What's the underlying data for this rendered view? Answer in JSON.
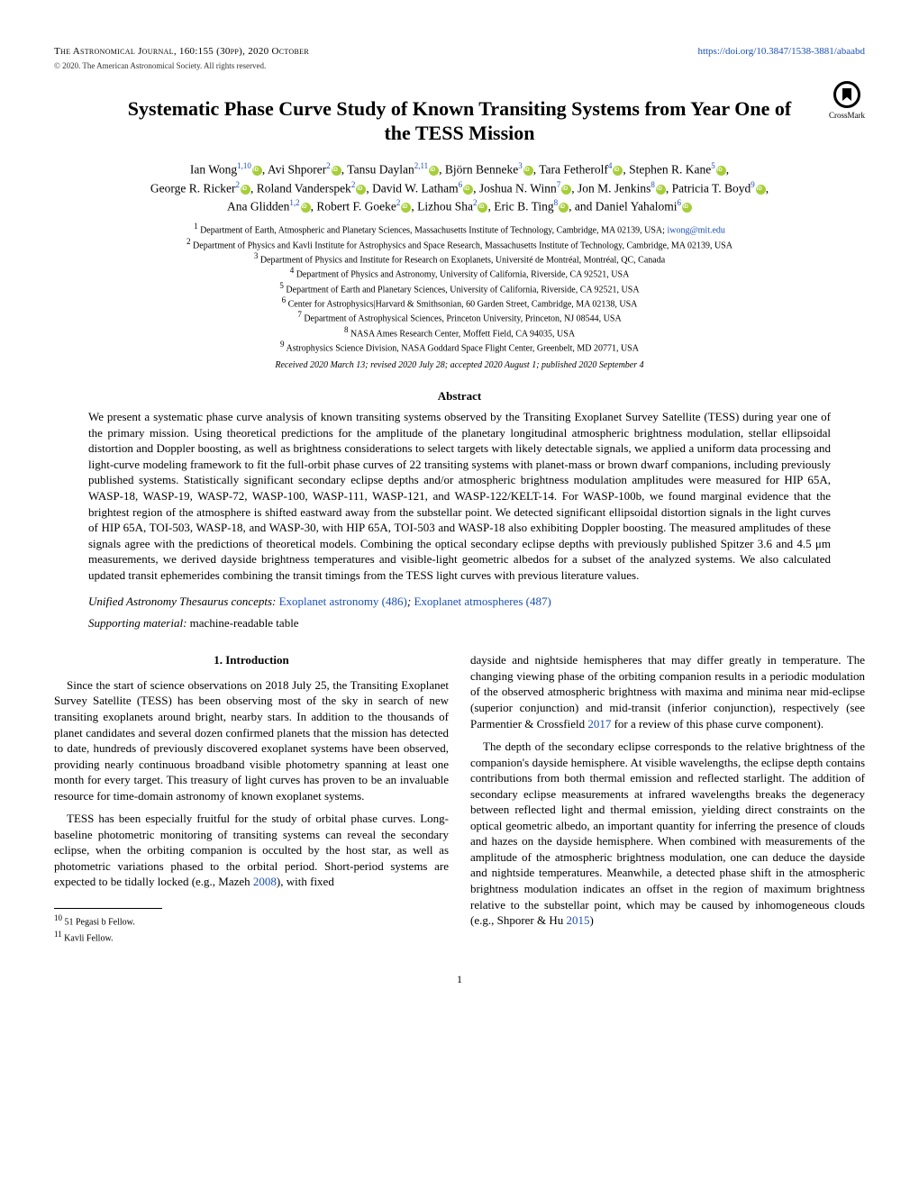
{
  "header": {
    "journal": "The Astronomical Journal, 160:155 (30pp), 2020 October",
    "doi_url": "https://doi.org/10.3847/1538-3881/abaabd",
    "copyright": "© 2020. The American Astronomical Society. All rights reserved."
  },
  "crossmark_label": "CrossMark",
  "title": "Systematic Phase Curve Study of Known Transiting Systems from Year One of the TESS Mission",
  "authors_line1": "Ian Wong",
  "affiliations": [
    "Department of Earth, Atmospheric and Planetary Sciences, Massachusetts Institute of Technology, Cambridge, MA 02139, USA; ",
    "Department of Physics and Kavli Institute for Astrophysics and Space Research, Massachusetts Institute of Technology, Cambridge, MA 02139, USA",
    "Department of Physics and Institute for Research on Exoplanets, Université de Montréal, Montréal, QC, Canada",
    "Department of Physics and Astronomy, University of California, Riverside, CA 92521, USA",
    "Department of Earth and Planetary Sciences, University of California, Riverside, CA 92521, USA",
    "Center for Astrophysics|Harvard & Smithsonian, 60 Garden Street, Cambridge, MA 02138, USA",
    "Department of Astrophysical Sciences, Princeton University, Princeton, NJ 08544, USA",
    "NASA Ames Research Center, Moffett Field, CA 94035, USA",
    "Astrophysics Science Division, NASA Goddard Space Flight Center, Greenbelt, MD 20771, USA"
  ],
  "email": "iwong@mit.edu",
  "dates": "Received 2020 March 13; revised 2020 July 28; accepted 2020 August 1; published 2020 September 4",
  "abstract_head": "Abstract",
  "abstract": "We present a systematic phase curve analysis of known transiting systems observed by the Transiting Exoplanet Survey Satellite (TESS) during year one of the primary mission. Using theoretical predictions for the amplitude of the planetary longitudinal atmospheric brightness modulation, stellar ellipsoidal distortion and Doppler boosting, as well as brightness considerations to select targets with likely detectable signals, we applied a uniform data processing and light-curve modeling framework to fit the full-orbit phase curves of 22 transiting systems with planet-mass or brown dwarf companions, including previously published systems. Statistically significant secondary eclipse depths and/or atmospheric brightness modulation amplitudes were measured for HIP 65A, WASP-18, WASP-19, WASP-72, WASP-100, WASP-111, WASP-121, and WASP-122/KELT-14. For WASP-100b, we found marginal evidence that the brightest region of the atmosphere is shifted eastward away from the substellar point. We detected significant ellipsoidal distortion signals in the light curves of HIP 65A, TOI-503, WASP-18, and WASP-30, with HIP 65A, TOI-503 and WASP-18 also exhibiting Doppler boosting. The measured amplitudes of these signals agree with the predictions of theoretical models. Combining the optical secondary eclipse depths with previously published Spitzer 3.6 and 4.5 μm measurements, we derived dayside brightness temperatures and visible-light geometric albedos for a subset of the analyzed systems. We also calculated updated transit ephemerides combining the transit timings from the TESS light curves with previous literature values.",
  "concepts_label": "Unified Astronomy Thesaurus concepts:",
  "concepts": [
    {
      "text": "Exoplanet astronomy (486)"
    },
    {
      "text": "Exoplanet atmospheres (487)"
    }
  ],
  "supporting": "Supporting material: ",
  "supporting_val": "machine-readable table",
  "section1_head": "1. Introduction",
  "col1_p1": "Since the start of science observations on 2018 July 25, the Transiting Exoplanet Survey Satellite (TESS) has been observing most of the sky in search of new transiting exoplanets around bright, nearby stars. In addition to the thousands of planet candidates and several dozen confirmed planets that the mission has detected to date, hundreds of previously discovered exoplanet systems have been observed, providing nearly continuous broadband visible photometry spanning at least one month for every target. This treasury of light curves has proven to be an invaluable resource for time-domain astronomy of known exoplanet systems.",
  "col1_p2a": "TESS has been especially fruitful for the study of orbital phase curves. Long-baseline photometric monitoring of transiting systems can reveal the secondary eclipse, when the orbiting companion is occulted by the host star, as well as photometric variations phased to the orbital period. Short-period systems are expected to be tidally locked (e.g., Mazeh ",
  "col1_p2b": "), with fixed",
  "mazeh_year": "2008",
  "col2_p1a": "dayside and nightside hemispheres that may differ greatly in temperature. The changing viewing phase of the orbiting companion results in a periodic modulation of the observed atmospheric brightness with maxima and minima near mid-eclipse (superior conjunction) and mid-transit (inferior conjunction), respectively (see Parmentier & Crossfield ",
  "parmentier_year": "2017",
  "col2_p1b": " for a review of this phase curve component).",
  "col2_p2a": "The depth of the secondary eclipse corresponds to the relative brightness of the companion's dayside hemisphere. At visible wavelengths, the eclipse depth contains contributions from both thermal emission and reflected starlight. The addition of secondary eclipse measurements at infrared wavelengths breaks the degeneracy between reflected light and thermal emission, yielding direct constraints on the optical geometric albedo, an important quantity for inferring the presence of clouds and hazes on the dayside hemisphere. When combined with measurements of the amplitude of the atmospheric brightness modulation, one can deduce the dayside and nightside temperatures. Meanwhile, a detected phase shift in the atmospheric brightness modulation indicates an offset in the region of maximum brightness relative to the substellar point, which may be caused by inhomogeneous clouds (e.g., Shporer & Hu ",
  "shporer_year": "2015",
  "col2_p2b": ")",
  "footnotes": [
    "51 Pegasi b Fellow.",
    "Kavli Fellow."
  ],
  "pagenum": "1",
  "colors": {
    "link": "#1a4fb3",
    "orcid": "#a6ce39"
  }
}
